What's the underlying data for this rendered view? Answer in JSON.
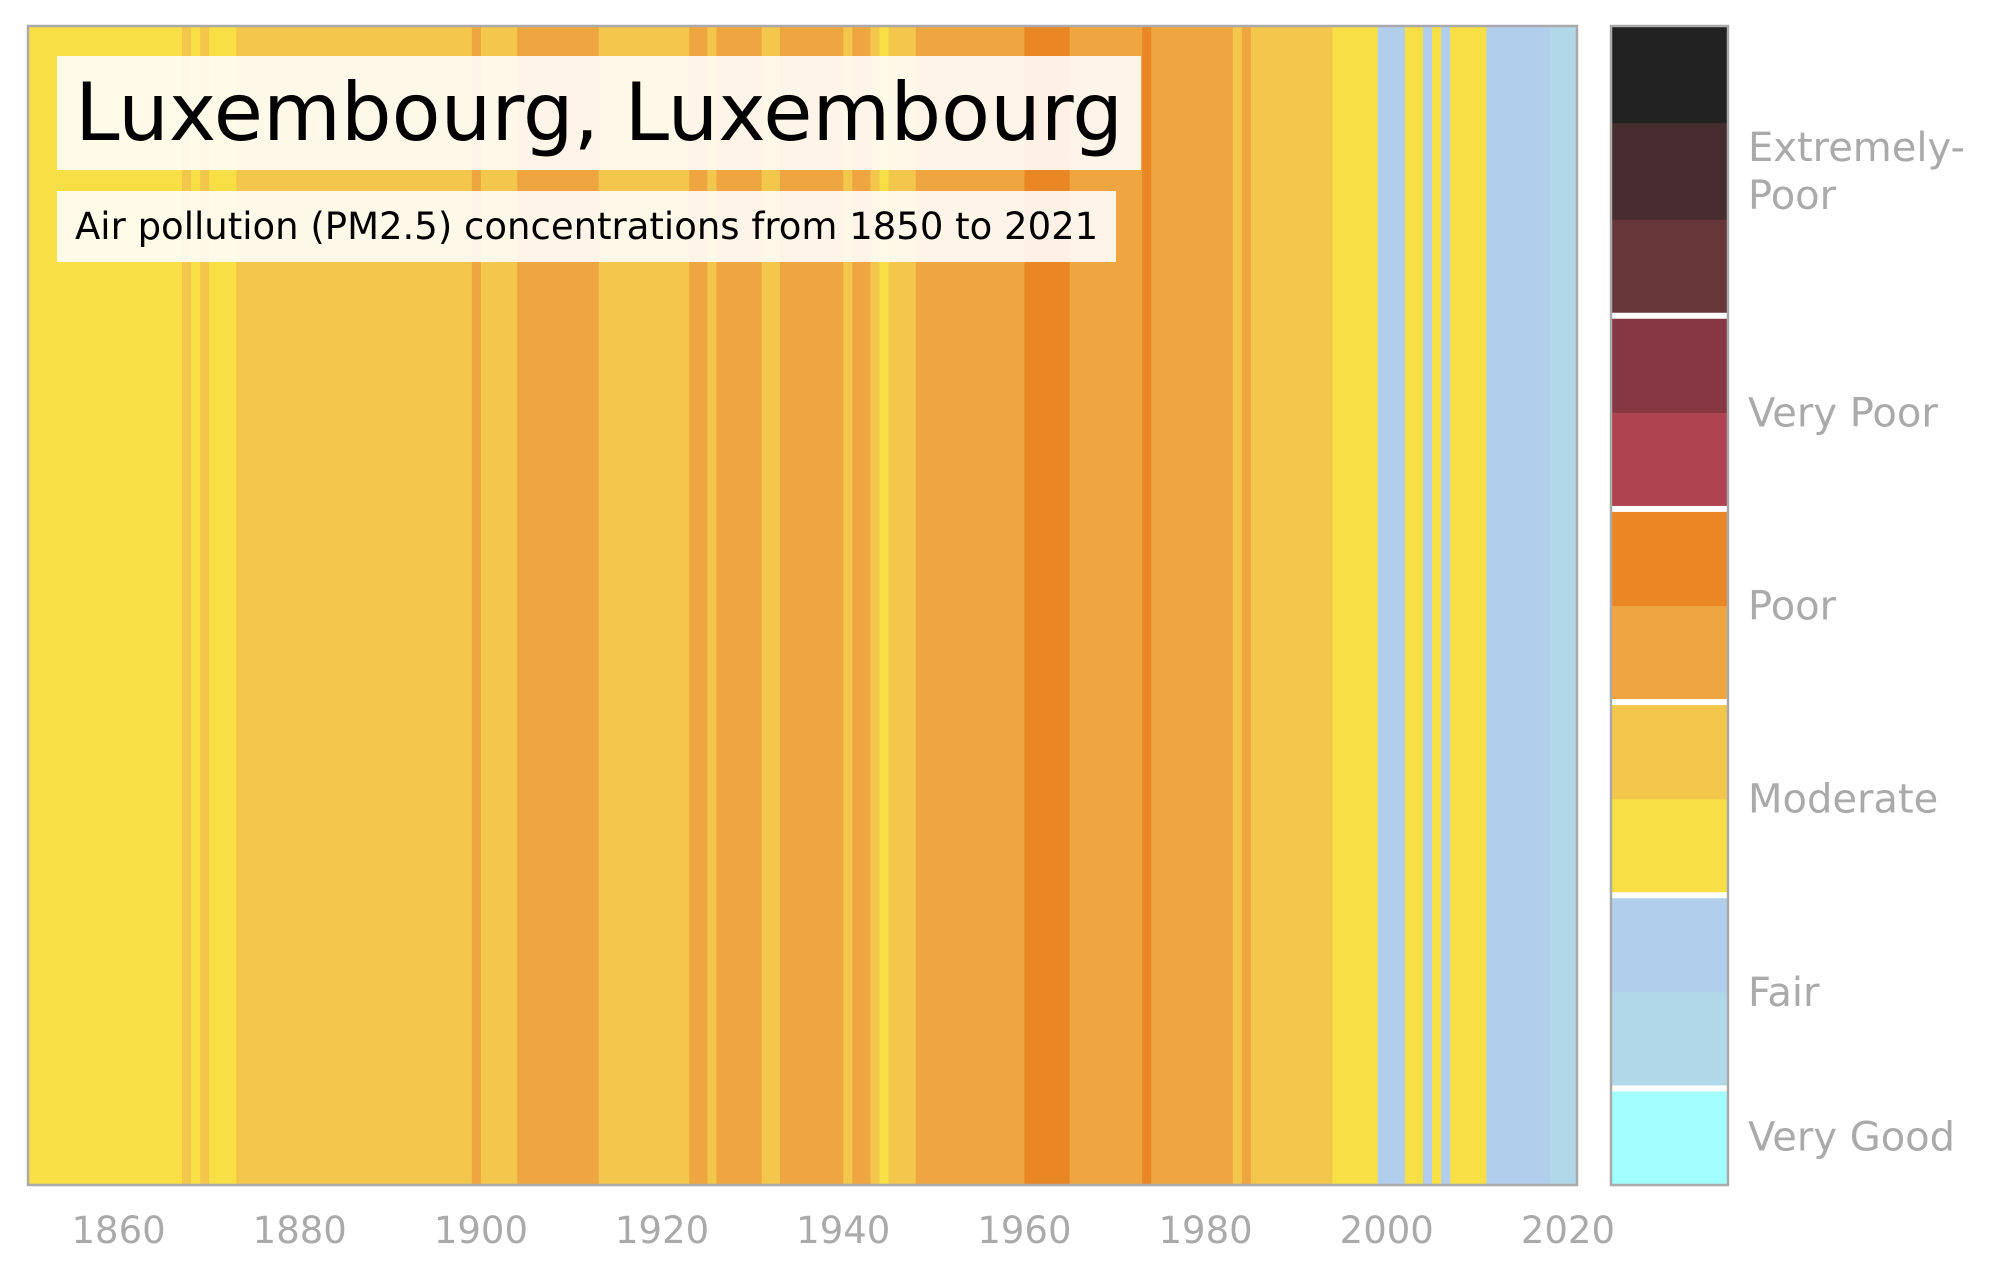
{
  "chart_data": {
    "type": "heatmap",
    "title": "Luxembourg, Luxembourg",
    "subtitle": "Air pollution (PM2.5) concentrations from 1850 to 2021",
    "x_range": [
      1850,
      2021
    ],
    "x_ticks": [
      1860,
      1880,
      1900,
      1920,
      1940,
      1960,
      1980,
      2000,
      2020
    ],
    "colorbar": {
      "categories": [
        {
          "label": "Very Good",
          "colors": [
            "#a3ffff"
          ]
        },
        {
          "label": "Fair",
          "colors": [
            "#b1d8e8",
            "#b1cfec"
          ]
        },
        {
          "label": "Moderate",
          "colors": [
            "#f8df45",
            "#f3c74b"
          ]
        },
        {
          "label": "Poor",
          "colors": [
            "#f0a640",
            "#e98725"
          ]
        },
        {
          "label": "Very Poor",
          "colors": [
            "#ad4450",
            "#873742"
          ]
        },
        {
          "label": "Extremely-Poor",
          "colors": [
            "#673639",
            "#462d2f",
            "#222222"
          ]
        }
      ]
    },
    "stripes": [
      {
        "start": 1850,
        "end": 1867,
        "level": "moderate-1",
        "color": "#f8df45"
      },
      {
        "start": 1867,
        "end": 1868,
        "level": "moderate-2",
        "color": "#f3c74b"
      },
      {
        "start": 1868,
        "end": 1869,
        "level": "moderate-1",
        "color": "#f8df45"
      },
      {
        "start": 1869,
        "end": 1870,
        "level": "moderate-2",
        "color": "#f3c74b"
      },
      {
        "start": 1870,
        "end": 1873,
        "level": "moderate-1",
        "color": "#f8df45"
      },
      {
        "start": 1873,
        "end": 1899,
        "level": "moderate-2",
        "color": "#f3c74b"
      },
      {
        "start": 1899,
        "end": 1900,
        "level": "poor-1",
        "color": "#f0a640"
      },
      {
        "start": 1900,
        "end": 1904,
        "level": "moderate-2",
        "color": "#f3c74b"
      },
      {
        "start": 1904,
        "end": 1913,
        "level": "poor-1",
        "color": "#f0a640"
      },
      {
        "start": 1913,
        "end": 1923,
        "level": "moderate-2",
        "color": "#f3c74b"
      },
      {
        "start": 1923,
        "end": 1925,
        "level": "poor-1",
        "color": "#f0a640"
      },
      {
        "start": 1925,
        "end": 1926,
        "level": "moderate-2",
        "color": "#f3c74b"
      },
      {
        "start": 1926,
        "end": 1931,
        "level": "poor-1",
        "color": "#f0a640"
      },
      {
        "start": 1931,
        "end": 1933,
        "level": "moderate-2",
        "color": "#f3c74b"
      },
      {
        "start": 1933,
        "end": 1940,
        "level": "poor-1",
        "color": "#f0a640"
      },
      {
        "start": 1940,
        "end": 1941,
        "level": "moderate-2",
        "color": "#f3c74b"
      },
      {
        "start": 1941,
        "end": 1943,
        "level": "poor-1",
        "color": "#f0a640"
      },
      {
        "start": 1943,
        "end": 1944,
        "level": "moderate-2",
        "color": "#f3c74b"
      },
      {
        "start": 1944,
        "end": 1945,
        "level": "moderate-1",
        "color": "#f8df45"
      },
      {
        "start": 1945,
        "end": 1948,
        "level": "moderate-2",
        "color": "#f3c74b"
      },
      {
        "start": 1948,
        "end": 1960,
        "level": "poor-1",
        "color": "#f0a640"
      },
      {
        "start": 1960,
        "end": 1965,
        "level": "poor-2",
        "color": "#e98725"
      },
      {
        "start": 1965,
        "end": 1973,
        "level": "poor-1",
        "color": "#f0a640"
      },
      {
        "start": 1973,
        "end": 1974,
        "level": "poor-2",
        "color": "#e98725"
      },
      {
        "start": 1974,
        "end": 1983,
        "level": "poor-1",
        "color": "#f0a640"
      },
      {
        "start": 1983,
        "end": 1984,
        "level": "moderate-2",
        "color": "#f3c74b"
      },
      {
        "start": 1984,
        "end": 1985,
        "level": "poor-1",
        "color": "#f0a640"
      },
      {
        "start": 1985,
        "end": 1994,
        "level": "moderate-2",
        "color": "#f3c74b"
      },
      {
        "start": 1994,
        "end": 1999,
        "level": "moderate-1",
        "color": "#f8df45"
      },
      {
        "start": 1999,
        "end": 2002,
        "level": "fair-2",
        "color": "#b1cfec"
      },
      {
        "start": 2002,
        "end": 2004,
        "level": "moderate-1",
        "color": "#f8df45"
      },
      {
        "start": 2004,
        "end": 2005,
        "level": "fair-2",
        "color": "#b1cfec"
      },
      {
        "start": 2005,
        "end": 2006,
        "level": "moderate-1",
        "color": "#f8df45"
      },
      {
        "start": 2006,
        "end": 2007,
        "level": "fair-2",
        "color": "#b1cfec"
      },
      {
        "start": 2007,
        "end": 2011,
        "level": "moderate-1",
        "color": "#f8df45"
      },
      {
        "start": 2011,
        "end": 2018,
        "level": "fair-2",
        "color": "#b1cfec"
      },
      {
        "start": 2018,
        "end": 2021,
        "level": "fair-1",
        "color": "#b1d8e8"
      }
    ],
    "grid": false,
    "legend_placement": "right"
  }
}
